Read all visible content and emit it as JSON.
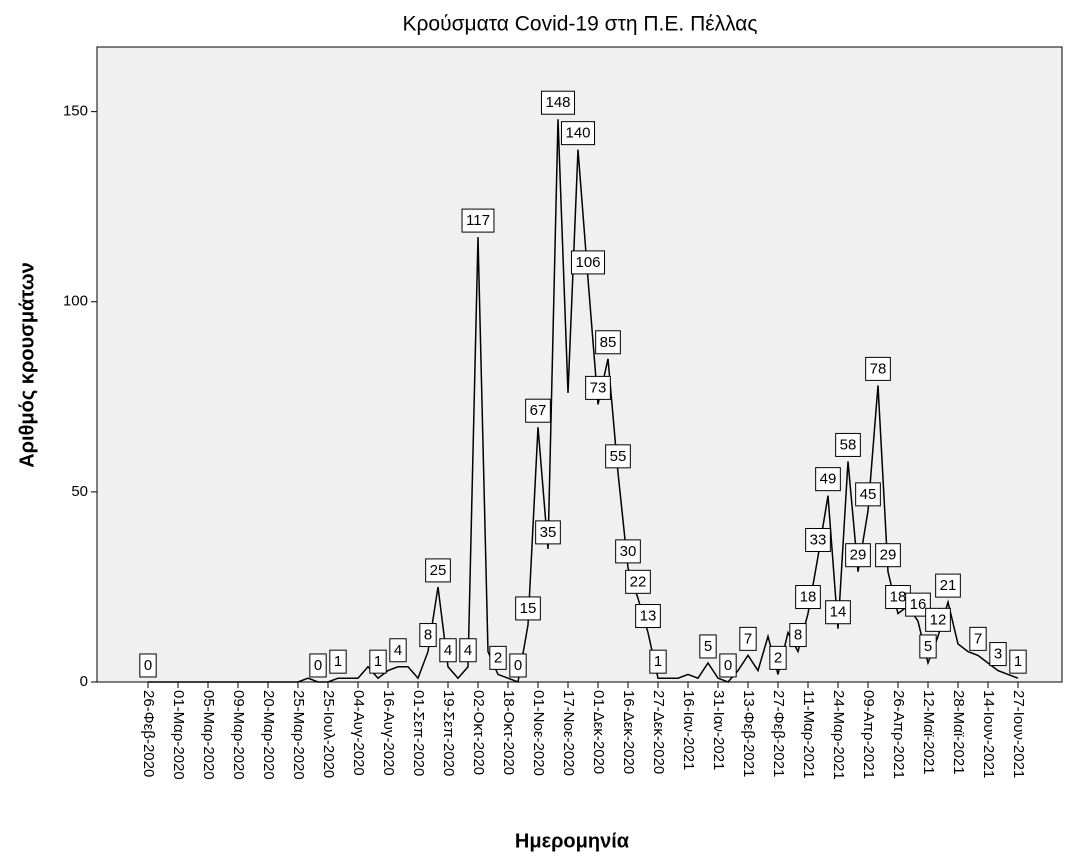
{
  "chart_data": {
    "type": "line",
    "title": "Κρούσματα Covid-19 στη Π.Ε. Πέλλας",
    "xlabel": "Ημερομηνία",
    "ylabel": "Αριθμός κρουσμάτων",
    "color": "#000000",
    "ylim": [
      0,
      167
    ],
    "yticks": [
      0,
      50,
      100,
      150
    ],
    "categories": [
      "26-Φεβ-2020",
      null,
      null,
      "01-Μαρ-2020",
      null,
      null,
      "05-Μαρ-2020",
      null,
      null,
      "09-Μαρ-2020",
      null,
      null,
      "20-Μαρ-2020",
      null,
      null,
      "25-Μαρ-2020",
      null,
      null,
      "25-Ιουλ-2020",
      null,
      null,
      "04-Αυγ-2020",
      null,
      null,
      "16-Αυγ-2020",
      null,
      null,
      "01-Σεπ-2020",
      null,
      null,
      "19-Σεπ-2020",
      null,
      null,
      "02-Οκτ-2020",
      null,
      null,
      "18-Οκτ-2020",
      null,
      null,
      "01-Νοε-2020",
      null,
      null,
      "17-Νοε-2020",
      null,
      null,
      "01-Δεκ-2020",
      null,
      null,
      "16-Δεκ-2020",
      null,
      null,
      "27-Δεκ-2020",
      null,
      null,
      "16-Ιαν-2021",
      null,
      null,
      "31-Ιαν-2021",
      null,
      null,
      "13-Φεβ-2021",
      null,
      null,
      "27-Φεβ-2021",
      null,
      null,
      "11-Μαρ-2021",
      null,
      null,
      "24-Μαρ-2021",
      null,
      null,
      "09-Απρ-2021",
      null,
      null,
      "26-Απρ-2021",
      null,
      null,
      "12-Μαϊ-2021",
      null,
      null,
      "28-Μαϊ-2021",
      null,
      null,
      "14-Ιουν-2021",
      null,
      null,
      "27-Ιουν-2021"
    ],
    "values": [
      0,
      0,
      0,
      0,
      0,
      0,
      0,
      0,
      0,
      0,
      0,
      0,
      0,
      0,
      0,
      0,
      1,
      0,
      0,
      1,
      1,
      1,
      4,
      1,
      3,
      4,
      4,
      1,
      8,
      25,
      4,
      1,
      4,
      117,
      8,
      2,
      1,
      0,
      15,
      67,
      35,
      148,
      76,
      140,
      106,
      73,
      85,
      55,
      30,
      22,
      13,
      1,
      1,
      1,
      2,
      1,
      5,
      1,
      0,
      3,
      7,
      3,
      12,
      2,
      13,
      8,
      18,
      33,
      49,
      14,
      58,
      29,
      45,
      78,
      29,
      18,
      20,
      16,
      5,
      12,
      21,
      10,
      8,
      7,
      5,
      3,
      2,
      1
    ],
    "value_labels": [
      0,
      null,
      null,
      null,
      null,
      null,
      null,
      null,
      null,
      null,
      null,
      null,
      null,
      null,
      null,
      null,
      null,
      0,
      null,
      1,
      null,
      null,
      null,
      1,
      null,
      4,
      null,
      null,
      8,
      25,
      4,
      null,
      4,
      117,
      null,
      2,
      null,
      0,
      15,
      67,
      35,
      148,
      null,
      140,
      106,
      73,
      85,
      55,
      30,
      22,
      13,
      1,
      null,
      null,
      null,
      null,
      5,
      null,
      0,
      null,
      7,
      null,
      null,
      2,
      null,
      8,
      18,
      33,
      49,
      14,
      58,
      29,
      45,
      78,
      29,
      18,
      null,
      16,
      5,
      12,
      21,
      null,
      null,
      7,
      null,
      3,
      null,
      1
    ]
  }
}
